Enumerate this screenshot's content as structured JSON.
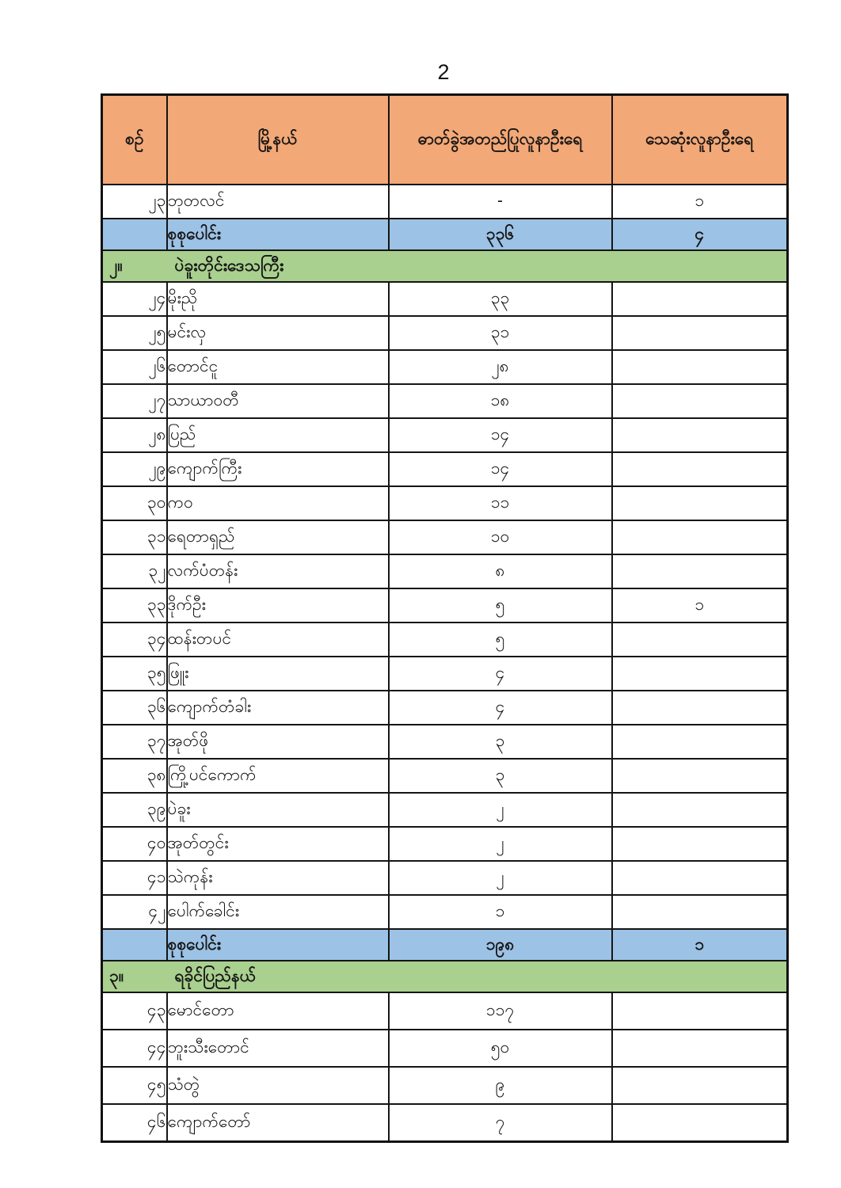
{
  "page_number": "2",
  "colors": {
    "header_bg": "#F3A877",
    "total_row_bg": "#9CC2E5",
    "section_row_bg": "#A9D08E",
    "border": "#151515"
  },
  "table": {
    "columns": [
      {
        "key": "no",
        "label": "စဉ်"
      },
      {
        "key": "township",
        "label": "မြို့နယ်"
      },
      {
        "key": "confirmed",
        "label": "ဓာတ်ခွဲအတည်ပြုလူနာဦးရေ"
      },
      {
        "key": "deaths",
        "label": "သေဆုံးလူနာဦးရေ"
      }
    ],
    "rows": [
      {
        "type": "data",
        "no": "၂၃",
        "township": "ဘုတလင်",
        "confirmed": "-",
        "deaths": "၁"
      },
      {
        "type": "total",
        "label": "စုစုပေါင်း",
        "confirmed": "၃၃၆",
        "deaths": "၄"
      },
      {
        "type": "section",
        "no": "၂။",
        "label": "ပဲခူးတိုင်းဒေသကြီး"
      },
      {
        "type": "data",
        "no": "၂၄",
        "township": "မိုးညို",
        "confirmed": "၃၃",
        "deaths": ""
      },
      {
        "type": "data",
        "no": "၂၅",
        "township": "မင်းလှ",
        "confirmed": "၃၁",
        "deaths": ""
      },
      {
        "type": "data",
        "no": "၂၆",
        "township": "တောင်ငူ",
        "confirmed": "၂၈",
        "deaths": ""
      },
      {
        "type": "data",
        "no": "၂၇",
        "township": "သာယာဝတီ",
        "confirmed": "၁၈",
        "deaths": ""
      },
      {
        "type": "data",
        "no": "၂၈",
        "township": "ပြည်",
        "confirmed": "၁၄",
        "deaths": ""
      },
      {
        "type": "data",
        "no": "၂၉",
        "township": "ကျောက်ကြီး",
        "confirmed": "၁၄",
        "deaths": ""
      },
      {
        "type": "data",
        "no": "၃၀",
        "township": "ကဝ",
        "confirmed": "၁၁",
        "deaths": ""
      },
      {
        "type": "data",
        "no": "၃၁",
        "township": "ရေတာရှည်",
        "confirmed": "၁၀",
        "deaths": ""
      },
      {
        "type": "data",
        "no": "၃၂",
        "township": "လက်ပံတန်း",
        "confirmed": "၈",
        "deaths": ""
      },
      {
        "type": "data",
        "no": "၃၃",
        "township": "ဒိုက်ဦး",
        "confirmed": "၅",
        "deaths": "၁"
      },
      {
        "type": "data",
        "no": "၃၄",
        "township": "ထန်းတပင်",
        "confirmed": "၅",
        "deaths": ""
      },
      {
        "type": "data",
        "no": "၃၅",
        "township": "ဖြူး",
        "confirmed": "၄",
        "deaths": ""
      },
      {
        "type": "data",
        "no": "၃၆",
        "township": "ကျောက်တံခါး",
        "confirmed": "၄",
        "deaths": ""
      },
      {
        "type": "data",
        "no": "၃၇",
        "township": "အုတ်ဖို",
        "confirmed": "၃",
        "deaths": ""
      },
      {
        "type": "data",
        "no": "၃၈",
        "township": "ကြို့ပင်ကောက်",
        "confirmed": "၃",
        "deaths": ""
      },
      {
        "type": "data",
        "no": "၃၉",
        "township": "ပဲခူး",
        "confirmed": "၂",
        "deaths": ""
      },
      {
        "type": "data",
        "no": "၄၀",
        "township": "အုတ်တွင်း",
        "confirmed": "၂",
        "deaths": ""
      },
      {
        "type": "data",
        "no": "၄၁",
        "township": "သဲကုန်း",
        "confirmed": "၂",
        "deaths": ""
      },
      {
        "type": "data",
        "no": "၄၂",
        "township": "ပေါက်ခေါင်း",
        "confirmed": "၁",
        "deaths": ""
      },
      {
        "type": "total",
        "label": "စုစုပေါင်း",
        "confirmed": "၁၉၈",
        "deaths": "၁"
      },
      {
        "type": "section",
        "no": "၃။",
        "label": "ရခိုင်ပြည်နယ်"
      },
      {
        "type": "data",
        "tall": true,
        "no": "၄၃",
        "township": "မောင်တော",
        "confirmed": "၁၁၇",
        "deaths": ""
      },
      {
        "type": "data",
        "tall": true,
        "no": "၄၄",
        "township": "ဘူးသီးတောင်",
        "confirmed": "၅၀",
        "deaths": ""
      },
      {
        "type": "data",
        "tall": true,
        "no": "၄၅",
        "township": "သံတွဲ",
        "confirmed": "၉",
        "deaths": ""
      },
      {
        "type": "data",
        "tall": true,
        "no": "၄၆",
        "township": "ကျောက်တော်",
        "confirmed": "၇",
        "deaths": ""
      }
    ]
  }
}
